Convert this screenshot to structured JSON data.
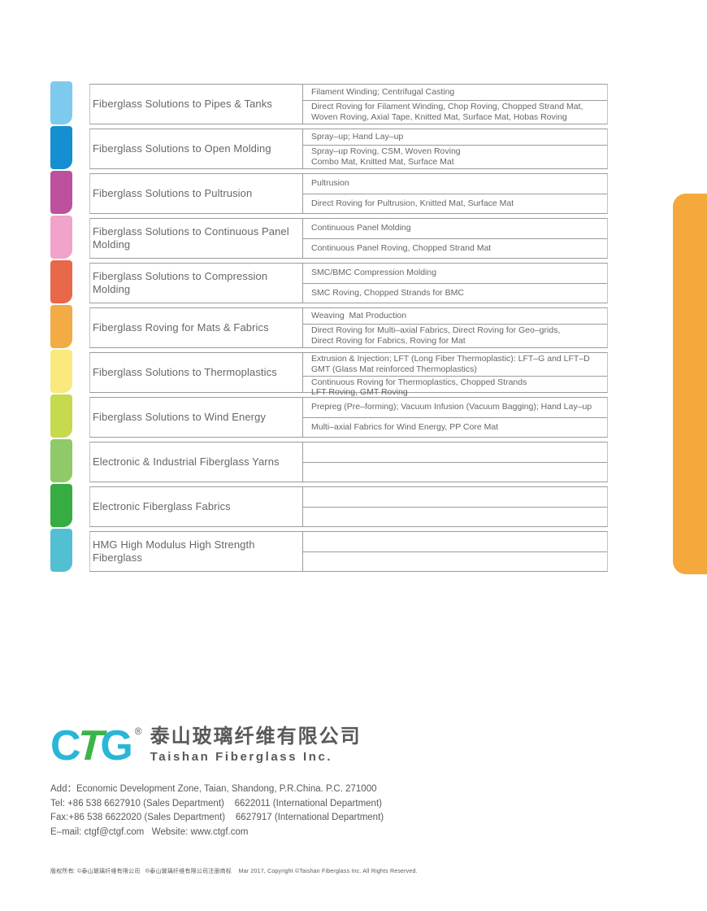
{
  "side_tab_color": "#F5A93C",
  "table": {
    "rows": [
      {
        "color": "#7EC9EE",
        "category": "Fiberglass Solutions to Pipes & Tanks",
        "cell_top": "Filament Winding; Centrifugal Casting",
        "cell_bottom": "Direct Roving for Filament Winding, Chop Roving, Chopped Strand Mat,\nWoven Roving, Axial Tape, Knitted Mat, Surface Mat, Hobas Roving"
      },
      {
        "color": "#148FD1",
        "category": "Fiberglass Solutions to Open Molding",
        "cell_top": "Spray–up; Hand Lay–up",
        "cell_bottom": "Spray–up Roving, CSM, Woven Roving\nCombo Mat, Knitted Mat, Surface Mat"
      },
      {
        "color": "#BE519D",
        "category": "Fiberglass Solutions to Pultrusion",
        "cell_top": "Pultrusion",
        "cell_bottom": "Direct Roving for Pultrusion, Knitted Mat, Surface Mat"
      },
      {
        "color": "#F2A3CA",
        "category": "Fiberglass Solutions to Continuous Panel Molding",
        "cell_top": "Continuous Panel Molding",
        "cell_bottom": "Continuous Panel Roving, Chopped Strand Mat"
      },
      {
        "color": "#E8684A",
        "category": "Fiberglass Solutions to Compression Molding",
        "cell_top": "SMC/BMC Compression Molding",
        "cell_bottom": "SMC Roving, Chopped Strands for BMC"
      },
      {
        "color": "#F2AB45",
        "category": "Fiberglass Roving for Mats & Fabrics",
        "cell_top": "Weaving  Mat Production",
        "cell_bottom": "Direct Roving for Multi–axial Fabrics, Direct Roving for Geo–grids,\nDirect Roving for Fabrics, Roving for Mat"
      },
      {
        "color": "#F9E97E",
        "category": "Fiberglass Solutions to Thermoplastics",
        "cell_top": "Extrusion & Injection; LFT (Long Fiber Thermoplastic): LFT–G and LFT–D\nGMT (Glass Mat reinforced Thermoplastics)",
        "cell_bottom": "Continuous Roving for Thermoplastics, Chopped Strands\nLFT Roving, GMT Roving"
      },
      {
        "color": "#C7D94D",
        "category": "Fiberglass Solutions to Wind Energy",
        "cell_top": "Prepreg (Pre–forming); Vacuum Infusion (Vacuum Bagging); Hand Lay–up",
        "cell_bottom": "Multi–axial Fabrics for Wind Energy, PP Core Mat"
      },
      {
        "color": "#90C968",
        "category": "Electronic & Industrial Fiberglass Yarns",
        "cell_top": "",
        "cell_bottom": ""
      },
      {
        "color": "#37AC43",
        "category": "Electronic Fiberglass Fabrics",
        "cell_top": "",
        "cell_bottom": ""
      },
      {
        "color": "#52C0D2",
        "category": "HMG High Modulus High Strength Fiberglass",
        "cell_top": "",
        "cell_bottom": ""
      }
    ]
  },
  "footer": {
    "logo": {
      "letter_c": "C",
      "letter_t": "T",
      "letter_g": "G",
      "cyan": "#29B6D8",
      "green": "#3BB54A",
      "registered_mark": "®",
      "company_cn": "泰山玻璃纤维有限公司",
      "company_en": "Taishan Fiberglass Inc."
    },
    "contact": {
      "address": "Add：Economic Development Zone, Taian, Shandong, P.R.China. P.C. 271000",
      "tel": "Tel: +86 538 6627910 (Sales Department)    6622011 (International Department)",
      "fax": "Fax:+86 538 6622020 (Sales Department)    6627917 (International Department)",
      "email_web": "E–mail: ctgf@ctgf.com   Website: www.ctgf.com"
    },
    "copyright": "版权所有: ©泰山玻璃纤维有限公司   ®泰山玻璃纤维有限公司注册商标    Mar 2017, Copyright ©Taishan Fiberglass Inc. All Rights Reserved."
  }
}
